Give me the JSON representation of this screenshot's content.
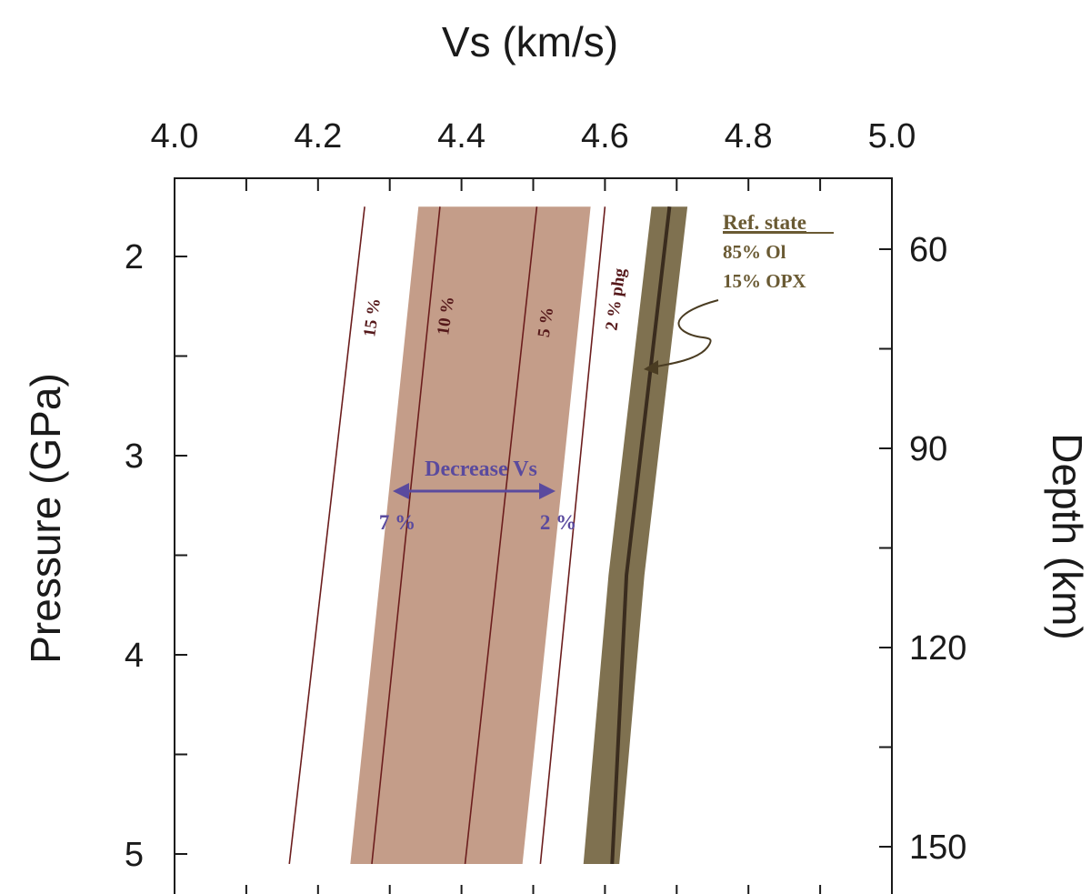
{
  "colors": {
    "sensitivity_band": "#c49d89",
    "reference_band": "#7f7150",
    "reference_line": "#3a2c1e",
    "contour_line": "#6b1d1d",
    "contour_label": "#55181a",
    "annotation_arrow": "#5a4a9e",
    "ref_text": "#6a5a33",
    "axis": "#1a1a1a"
  },
  "chart_data": {
    "type": "line",
    "title": "",
    "xlabel": "Vs (km/s)",
    "ylabel": "Pressure (GPa)",
    "y2label": "Depth (km)",
    "xlim": [
      4.0,
      5.0
    ],
    "ylim": [
      1.6,
      5.2
    ],
    "y_inverted": true,
    "x_axis_position": "top",
    "x_ticks": [
      "4.0",
      "4.2",
      "4.4",
      "4.6",
      "4.8",
      "5.0"
    ],
    "y_ticks": [
      "2",
      "3",
      "4",
      "5"
    ],
    "y2_ticks": [
      "60",
      "90",
      "120",
      "150"
    ],
    "grid": false,
    "series": [
      {
        "name": "15 %",
        "pressure": [
          1.75,
          5.05
        ],
        "vs": [
          4.265,
          4.16
        ]
      },
      {
        "name": "10 %",
        "pressure": [
          1.75,
          5.05
        ],
        "vs": [
          4.37,
          4.275
        ]
      },
      {
        "name": "5 %",
        "pressure": [
          1.75,
          5.05
        ],
        "vs": [
          4.505,
          4.405
        ]
      },
      {
        "name": "2 % phg",
        "pressure": [
          1.75,
          5.05
        ],
        "vs": [
          4.6,
          4.51
        ]
      },
      {
        "name": "Ref. state",
        "pressure": [
          1.75,
          3.6,
          5.05
        ],
        "vs": [
          4.69,
          4.63,
          4.61
        ]
      }
    ],
    "bands": [
      {
        "name": "sensitivity",
        "pressure": [
          1.75,
          5.05
        ],
        "vs_left": [
          4.34,
          4.245
        ],
        "vs_right": [
          4.58,
          4.485
        ]
      },
      {
        "name": "reference",
        "pressure": [
          1.75,
          3.6,
          5.05
        ],
        "vs_left": [
          4.665,
          4.605,
          4.57
        ],
        "vs_right": [
          4.715,
          4.655,
          4.62
        ]
      }
    ],
    "annotations": {
      "decrease_label": "Decrease Vs",
      "decrease_left": "7 %",
      "decrease_right": "2 %",
      "ref_title": "Ref. state",
      "ref_line1": "85% Ol",
      "ref_line2": "15% OPX"
    }
  }
}
